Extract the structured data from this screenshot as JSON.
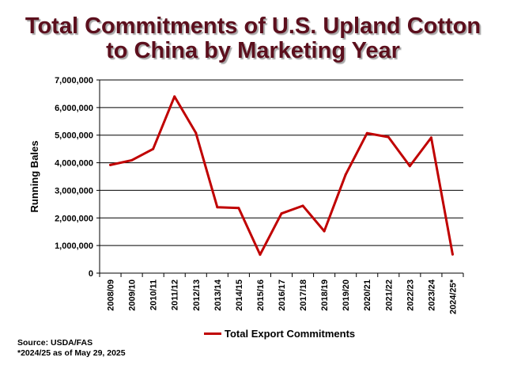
{
  "title_line1": "Total Commitments of U.S. Upland Cotton",
  "title_line2": "to China by Marketing Year",
  "source_note": "Source:  USDA/FAS",
  "asof_note": "*2024/25 as of May 29, 2025",
  "chart_data": {
    "type": "line",
    "title": "Total Commitments of U.S. Upland Cotton to China by Marketing Year",
    "ylabel": "Running Bales",
    "xlabel": "",
    "ylim": [
      0,
      7000000
    ],
    "yticks": [
      0,
      1000000,
      2000000,
      3000000,
      4000000,
      5000000,
      6000000,
      7000000
    ],
    "ytick_labels": [
      "0",
      "1,000,000",
      "2,000,000",
      "3,000,000",
      "4,000,000",
      "5,000,000",
      "6,000,000",
      "7,000,000"
    ],
    "grid": true,
    "legend_position": "bottom",
    "categories": [
      "2008/09",
      "2009/10",
      "2010/11",
      "2011/12",
      "2012/13",
      "2013/14",
      "2014/15",
      "2015/16",
      "2016/17",
      "2017/18",
      "2018/19",
      "2019/20",
      "2020/21",
      "2021/22",
      "2022/23",
      "2023/24",
      "2024/25*"
    ],
    "series": [
      {
        "name": "Total Export Commitments",
        "color": "#c00000",
        "values": [
          3920000,
          4090000,
          4500000,
          6400000,
          5080000,
          2390000,
          2360000,
          670000,
          2160000,
          2440000,
          1520000,
          3570000,
          5070000,
          4930000,
          3880000,
          4910000,
          680000
        ]
      }
    ]
  }
}
